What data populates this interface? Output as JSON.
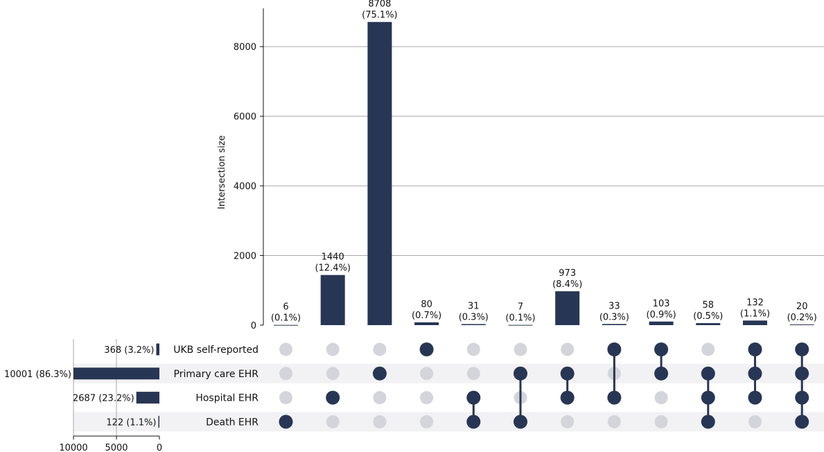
{
  "chart_data": {
    "type": "upset",
    "colors": {
      "bar": "#283655",
      "dot_active": "#283655",
      "dot_inactive": "#d3d5da",
      "grid": "#a8a8a8",
      "band": "#f2f2f4"
    },
    "intersection_axis": {
      "ylabel": "Intersection size",
      "ylim": [
        0,
        9100
      ],
      "ticks": [
        0,
        2000,
        4000,
        6000,
        8000
      ],
      "tick_labels": [
        "0",
        "2000",
        "4000",
        "6000",
        "8000"
      ],
      "grid": true
    },
    "sets": [
      {
        "name": "UKB self-reported",
        "size": 368,
        "label": "368 (3.2%)"
      },
      {
        "name": "Primary care EHR",
        "size": 10001,
        "label": "10001 (86.3%)"
      },
      {
        "name": "Hospital EHR",
        "size": 2687,
        "label": "2687 (23.2%)"
      },
      {
        "name": "Death EHR",
        "size": 122,
        "label": "122 (1.1%)"
      }
    ],
    "set_size_axis": {
      "xlim": [
        10000,
        0
      ],
      "ticks": [
        10000,
        5000,
        0
      ],
      "tick_labels": [
        "10000",
        "5000",
        "0"
      ],
      "grid": true
    },
    "intersections": [
      {
        "members": [
          3
        ],
        "value": 6,
        "count_label": "6",
        "pct_label": "(0.1%)"
      },
      {
        "members": [
          2
        ],
        "value": 1440,
        "count_label": "1440",
        "pct_label": "(12.4%)"
      },
      {
        "members": [
          1
        ],
        "value": 8708,
        "count_label": "8708",
        "pct_label": "(75.1%)"
      },
      {
        "members": [
          0
        ],
        "value": 80,
        "count_label": "80",
        "pct_label": "(0.7%)"
      },
      {
        "members": [
          2,
          3
        ],
        "value": 31,
        "count_label": "31",
        "pct_label": "(0.3%)"
      },
      {
        "members": [
          1,
          3
        ],
        "value": 7,
        "count_label": "7",
        "pct_label": "(0.1%)"
      },
      {
        "members": [
          1,
          2
        ],
        "value": 973,
        "count_label": "973",
        "pct_label": "(8.4%)"
      },
      {
        "members": [
          0,
          2
        ],
        "value": 33,
        "count_label": "33",
        "pct_label": "(0.3%)"
      },
      {
        "members": [
          0,
          1
        ],
        "value": 103,
        "count_label": "103",
        "pct_label": "(0.9%)"
      },
      {
        "members": [
          1,
          2,
          3
        ],
        "value": 58,
        "count_label": "58",
        "pct_label": "(0.5%)"
      },
      {
        "members": [
          0,
          1,
          2
        ],
        "value": 132,
        "count_label": "132",
        "pct_label": "(1.1%)"
      },
      {
        "members": [
          0,
          1,
          2,
          3
        ],
        "value": 20,
        "count_label": "20",
        "pct_label": "(0.2%)"
      }
    ]
  }
}
